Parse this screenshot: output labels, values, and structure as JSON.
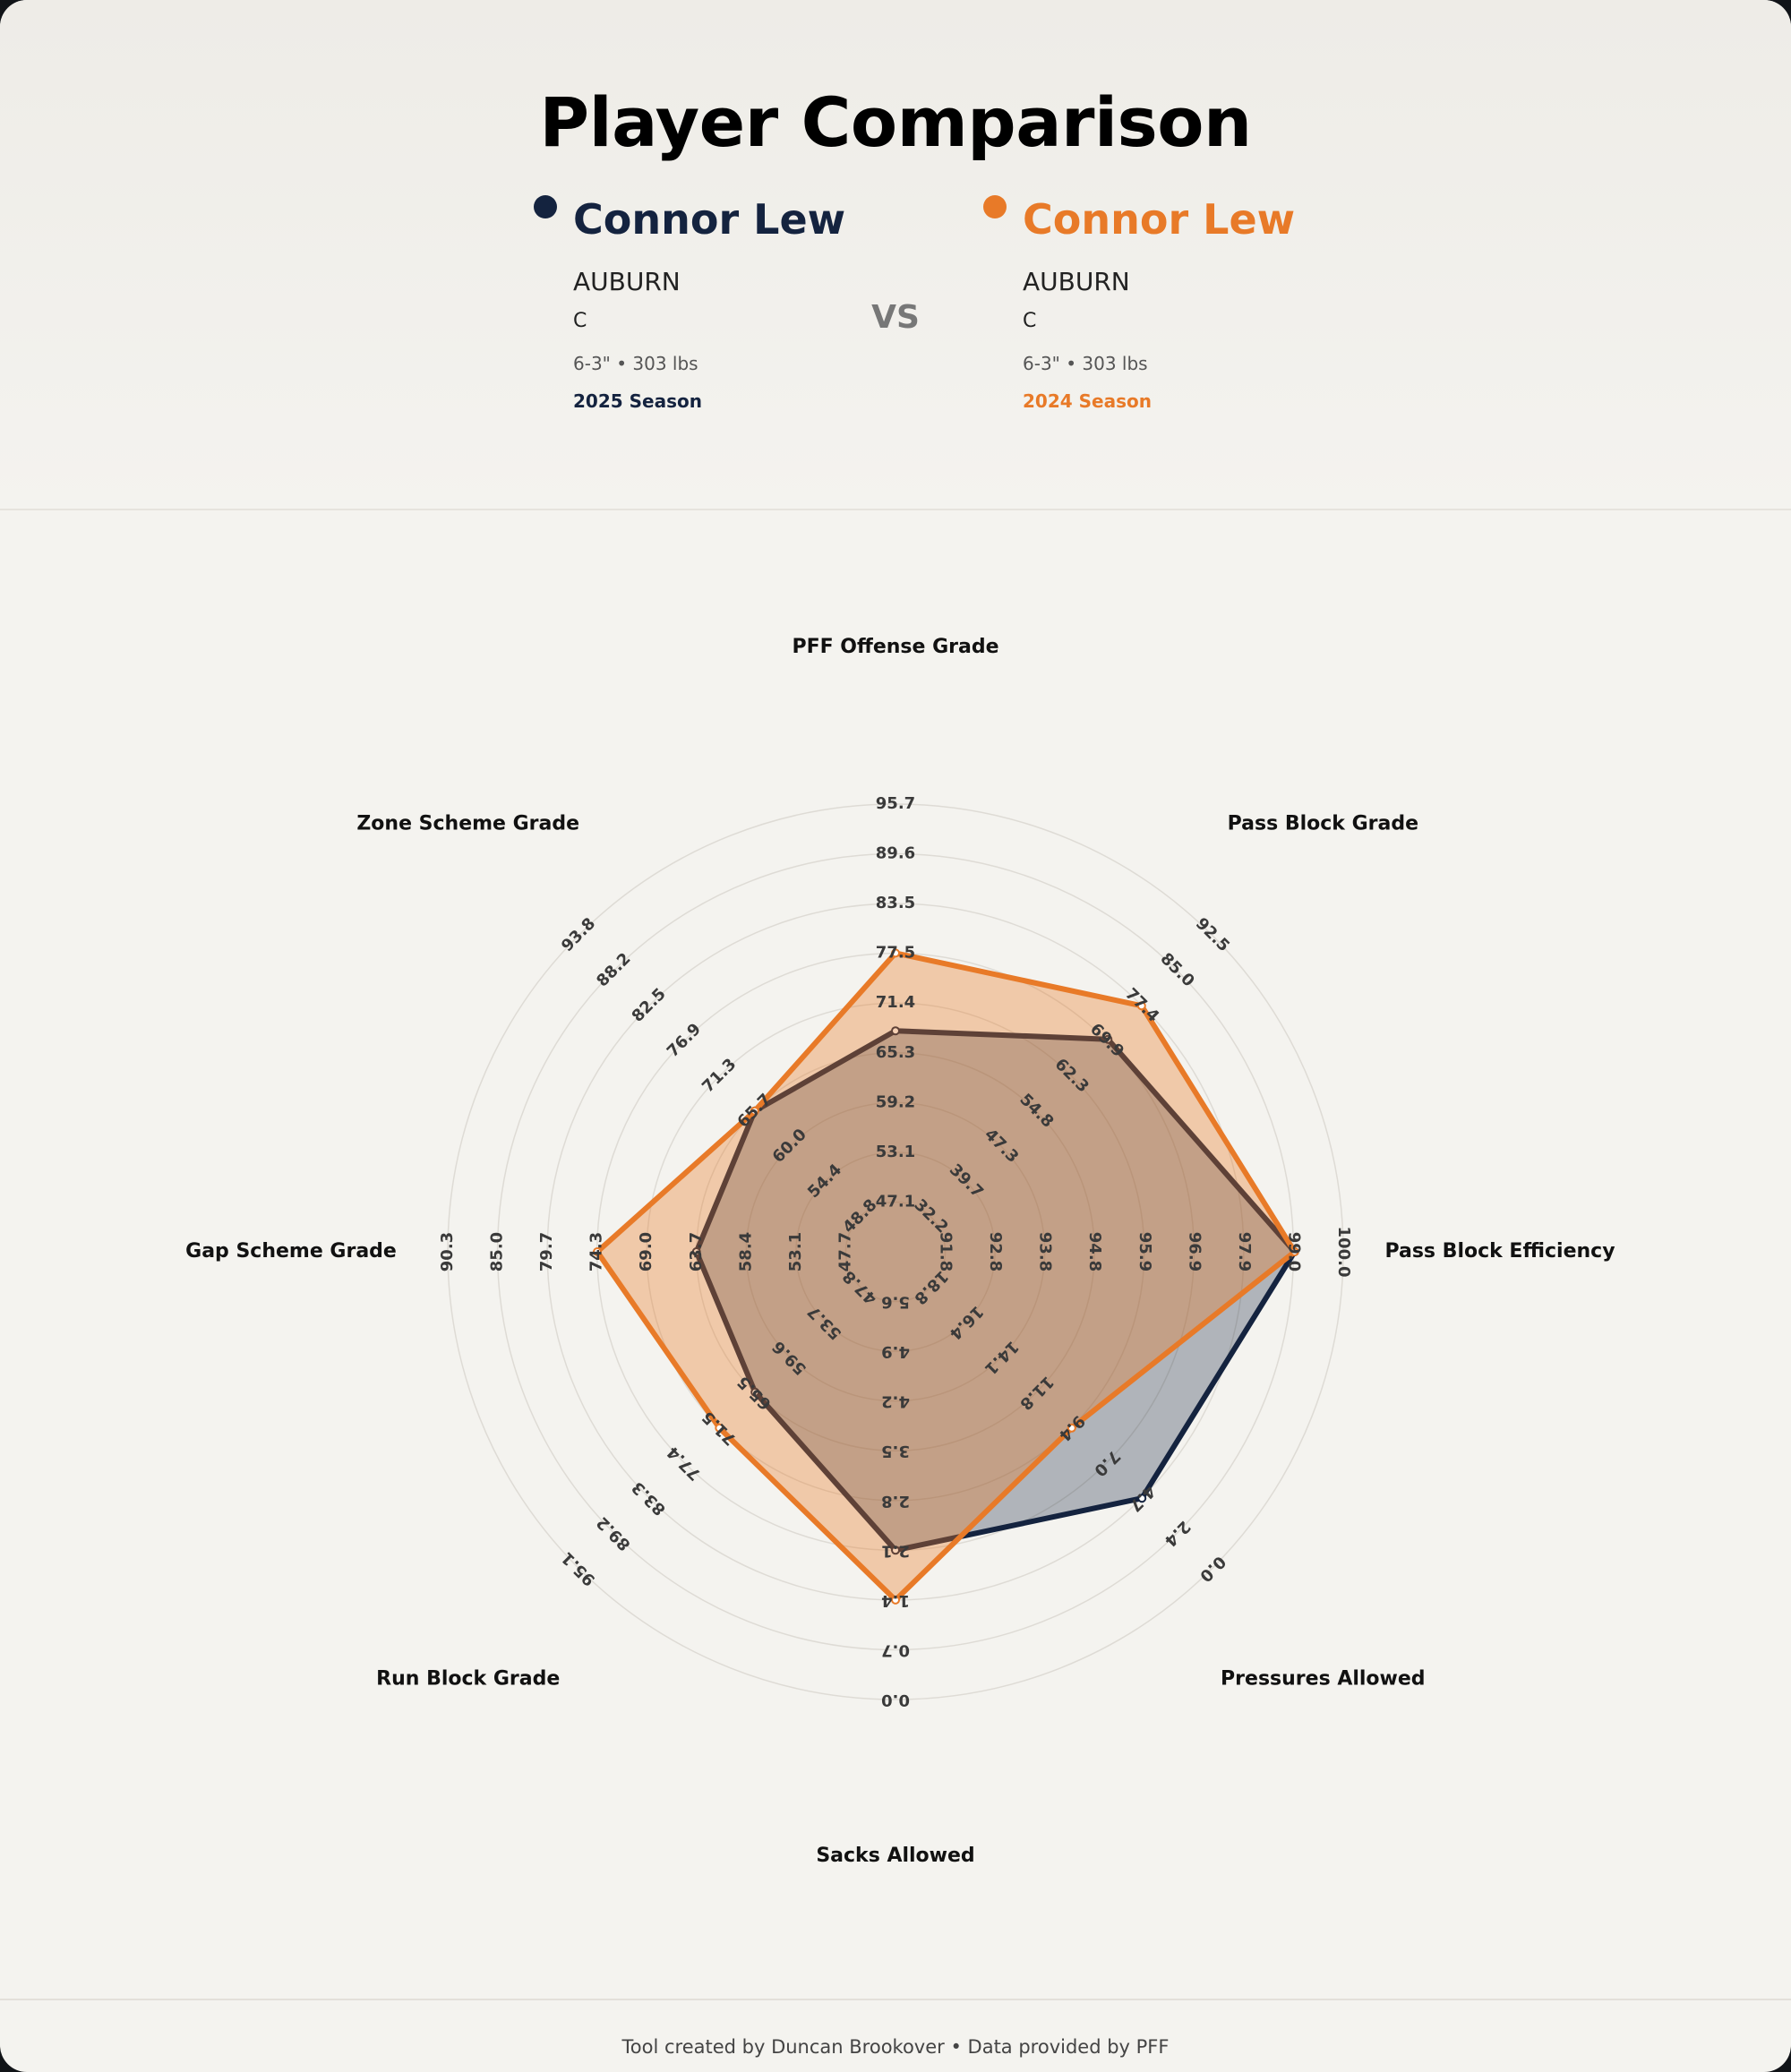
{
  "title": "Player Comparison",
  "vs": "VS",
  "players": [
    {
      "name": "Connor Lew",
      "team": "AUBURN",
      "position": "C",
      "measurements": "6-3\" • 303 lbs",
      "season": "2025 Season",
      "color": "#14233f"
    },
    {
      "name": "Connor Lew",
      "team": "AUBURN",
      "position": "C",
      "measurements": "6-3\" • 303 lbs",
      "season": "2024 Season",
      "color": "#e87a28"
    }
  ],
  "footer": "Tool created by Duncan Brookover • Data provided by PFF",
  "chart_data": {
    "type": "radar",
    "axes": [
      {
        "label": "PFF Offense Grade",
        "ticks": [
          "47.1",
          "53.1",
          "59.2",
          "65.3",
          "71.4",
          "77.5",
          "83.5",
          "89.6",
          "95.7"
        ],
        "min": 41.0,
        "max": 95.7
      },
      {
        "label": "Pass Block Grade",
        "ticks": [
          "32.2",
          "39.7",
          "47.3",
          "54.8",
          "62.3",
          "69.9",
          "77.4",
          "85.0",
          "92.5"
        ],
        "min": 24.7,
        "max": 92.5
      },
      {
        "label": "Pass Block Efficiency",
        "ticks": [
          "91.8",
          "92.8",
          "93.8",
          "94.8",
          "95.9",
          "96.9",
          "97.9",
          "99.0",
          "100.0"
        ],
        "min": 90.8,
        "max": 100.0
      },
      {
        "label": "Pressures Allowed",
        "ticks": [
          "18.8",
          "16.4",
          "14.1",
          "11.8",
          "9.4",
          "7.0",
          "4.7",
          "2.4",
          "0.0"
        ],
        "min": 21.2,
        "max": 0.0
      },
      {
        "label": "Sacks Allowed",
        "ticks": [
          "5.6",
          "4.9",
          "4.2",
          "3.5",
          "2.8",
          "2.1",
          "1.4",
          "0.7",
          "0.0"
        ],
        "min": 6.3,
        "max": 0.0
      },
      {
        "label": "Run Block Grade",
        "ticks": [
          "47.8",
          "53.7",
          "59.6",
          "65.5",
          "71.5",
          "77.4",
          "83.3",
          "89.2",
          "95.1"
        ],
        "min": 41.9,
        "max": 95.1
      },
      {
        "label": "Gap Scheme Grade",
        "ticks": [
          "47.7",
          "53.1",
          "58.4",
          "63.7",
          "69.0",
          "74.3",
          "79.7",
          "85.0",
          "90.3"
        ],
        "min": 42.4,
        "max": 90.3
      },
      {
        "label": "Zone Scheme Grade",
        "ticks": [
          "48.8",
          "54.4",
          "60.0",
          "65.7",
          "71.3",
          "76.9",
          "82.5",
          "88.2",
          "93.8"
        ],
        "min": 43.2,
        "max": 93.8
      }
    ],
    "series": [
      {
        "name": "Connor Lew",
        "season": "2025 Season",
        "color": "#14233f",
        "values": [
          68.0,
          70.2,
          99.0,
          4.7,
          2.1,
          65.5,
          63.7,
          65.7
        ]
      },
      {
        "name": "Connor Lew",
        "season": "2024 Season",
        "color": "#e87a28",
        "values": [
          77.5,
          77.4,
          99.0,
          9.4,
          1.4,
          71.5,
          74.3,
          65.7
        ]
      }
    ],
    "grid": true
  }
}
